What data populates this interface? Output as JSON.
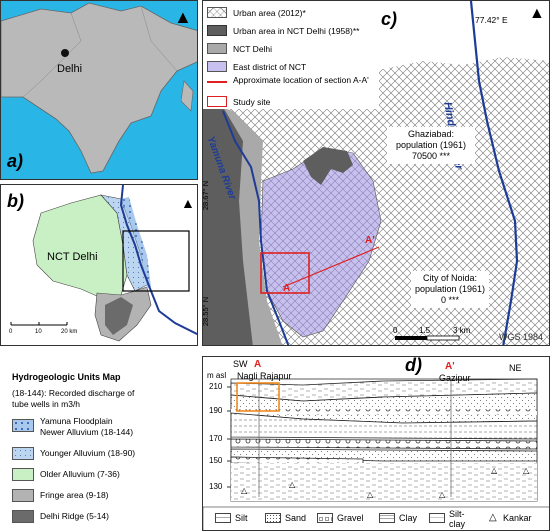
{
  "panel_a": {
    "label": "a)",
    "city": "Delhi"
  },
  "panel_b": {
    "label": "b)",
    "region": "NCT Delhi",
    "scale": [
      "0",
      "10",
      "20 km"
    ]
  },
  "panel_c": {
    "label": "c)",
    "longitude": "77.42° E",
    "lat_upper": "28.67° N",
    "lat_lower": "28.55° N",
    "river_yamuna": "Yamuna River",
    "river_hindon": "Hindon River",
    "ghaziabad": [
      "Ghaziabad:",
      "population (1961)",
      "70500 ***"
    ],
    "noida": [
      "City of Noida:",
      "population (1961)",
      "0 ***"
    ],
    "point_a": "A",
    "point_a2": "A'",
    "scale": [
      "0",
      "1.5",
      "3 km"
    ],
    "datum": "WGS 1984",
    "legend": [
      {
        "label": "Urban area (2012)*"
      },
      {
        "label": "Urban area in NCT Delhi (1958)**"
      },
      {
        "label": "NCT Delhi"
      },
      {
        "label": "East district of NCT"
      },
      {
        "label": "Approximate location of section A-A'"
      },
      {
        "label": "Study site"
      }
    ]
  },
  "hydro_legend": {
    "title": "Hydrogeologic Units Map",
    "subtitle": [
      "(18-144): Recorded discharge of",
      "tube wells in m3/h"
    ],
    "items": [
      {
        "label": [
          "Yamuna Floodplain",
          "Newer Alluvium (18-144)"
        ],
        "color": "#a8c8ee"
      },
      {
        "label": [
          "Younger Alluvium (18-90)"
        ],
        "color": "#bcd6f2"
      },
      {
        "label": [
          "Older Alluvium (7-36)"
        ],
        "color": "#c9f0c4"
      },
      {
        "label": [
          "Fringe area (9-18)"
        ],
        "color": "#b3b3b3"
      },
      {
        "label": [
          "Delhi Ridge (5-14)"
        ],
        "color": "#6b6b6b"
      }
    ]
  },
  "panel_d": {
    "label": "d)",
    "y_unit": "m asl",
    "sw": "SW",
    "ne": "NE",
    "a": "A",
    "a2": "A'",
    "site1": "Nagli Rajapur",
    "site2": "Gazipur",
    "y_ticks": [
      "210",
      "190",
      "170",
      "150",
      "130"
    ],
    "legend": [
      {
        "label": "Silt"
      },
      {
        "label": "Sand"
      },
      {
        "label": "Gravel"
      },
      {
        "label": "Clay"
      },
      {
        "label": "Silt-clay"
      },
      {
        "label": "Kankar"
      }
    ]
  },
  "colors": {
    "river": "#1e3c96",
    "red": "#e02020",
    "lavender": "#c8c0ee",
    "orange": "#f28a1e"
  }
}
